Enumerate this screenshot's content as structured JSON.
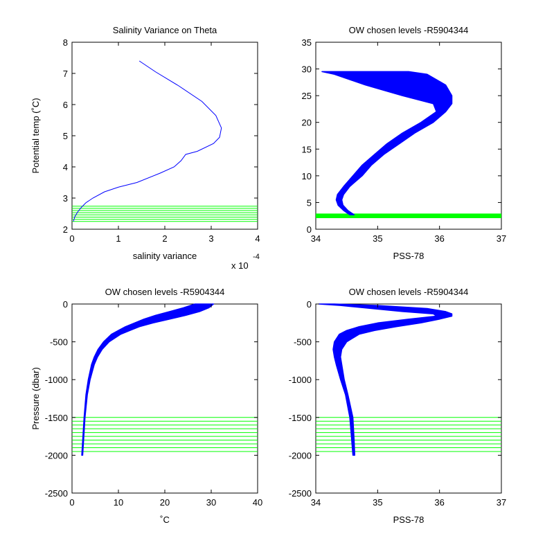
{
  "chart_data": [
    {
      "type": "line",
      "title": "Salinity Variance on Theta",
      "xlabel": "salinity variance",
      "ylabel": "Potential temp (˚C)",
      "x_multiplier": "x 10",
      "x_exponent": "-4",
      "xlim": [
        0,
        4
      ],
      "ylim": [
        2,
        8
      ],
      "xticks": [
        "0",
        "1",
        "2",
        "3",
        "4"
      ],
      "yticks": [
        "2",
        "3",
        "4",
        "5",
        "6",
        "7",
        "8"
      ],
      "colors": {
        "profile": "#0000ff",
        "chosen_levels": "#00ff00"
      },
      "series": [
        {
          "x": [
            1.45,
            1.8,
            2.3,
            2.8,
            3.1,
            3.22,
            3.18,
            3.05,
            2.7,
            2.45,
            2.35,
            2.2,
            1.9,
            1.4,
            1.0,
            0.7,
            0.45,
            0.3,
            0.2,
            0.12,
            0.06,
            0.03
          ],
          "y": [
            7.4,
            7.05,
            6.6,
            6.1,
            5.65,
            5.25,
            4.95,
            4.75,
            4.5,
            4.4,
            4.2,
            4.0,
            3.8,
            3.5,
            3.35,
            3.2,
            3.0,
            2.85,
            2.7,
            2.55,
            2.4,
            2.25
          ]
        }
      ],
      "chosen_levels_y": [
        2.25,
        2.32,
        2.39,
        2.46,
        2.53,
        2.6,
        2.67,
        2.74
      ]
    },
    {
      "type": "line",
      "title": "OW chosen levels -R5904344",
      "xlabel": "PSS-78",
      "ylabel": "",
      "xlim": [
        34,
        37
      ],
      "ylim": [
        0,
        35
      ],
      "xticks": [
        "34",
        "35",
        "36",
        "37"
      ],
      "yticks": [
        "0",
        "5",
        "10",
        "15",
        "20",
        "25",
        "30",
        "35"
      ],
      "colors": {
        "profile": "#0000ff",
        "chosen_levels": "#00ff00"
      },
      "profile_envelope": {
        "y": [
          29.5,
          29.0,
          27.0,
          25.0,
          23.5,
          22.0,
          20.0,
          18.0,
          16.0,
          14.0,
          12.0,
          10.0,
          8.0,
          6.5,
          5.5,
          4.5,
          3.5,
          2.7
        ],
        "x_min": [
          34.1,
          34.3,
          34.8,
          35.4,
          35.9,
          35.95,
          35.7,
          35.4,
          35.15,
          34.95,
          34.75,
          34.6,
          34.45,
          34.35,
          34.33,
          34.36,
          34.45,
          34.55
        ],
        "x_max": [
          35.5,
          35.8,
          36.1,
          36.2,
          36.2,
          36.1,
          35.9,
          35.6,
          35.35,
          35.1,
          34.9,
          34.75,
          34.55,
          34.45,
          34.42,
          34.44,
          34.52,
          34.62
        ]
      },
      "chosen_levels_y": [
        2.2,
        2.35,
        2.5,
        2.65,
        2.8
      ]
    },
    {
      "type": "line",
      "title": "OW chosen levels -R5904344",
      "xlabel": "˚C",
      "ylabel": "Pressure (dbar)",
      "xlim": [
        0,
        40
      ],
      "ylim": [
        -2500,
        0
      ],
      "xticks": [
        "0",
        "10",
        "20",
        "30",
        "40"
      ],
      "yticks": [
        "-2500",
        "-2000",
        "-1500",
        "-1000",
        "-500",
        "0"
      ],
      "colors": {
        "profile": "#0000ff",
        "chosen_levels": "#00ff00"
      },
      "profile_envelope": {
        "y": [
          0,
          -50,
          -100,
          -150,
          -200,
          -250,
          -300,
          -350,
          -400,
          -500,
          -600,
          -700,
          -800,
          -1000,
          -1200,
          -1500,
          -1800,
          -2000
        ],
        "x_min": [
          26.5,
          24.0,
          21.0,
          18.0,
          15.5,
          13.5,
          11.5,
          10.0,
          8.5,
          6.8,
          5.6,
          4.8,
          4.2,
          3.5,
          3.0,
          2.6,
          2.3,
          2.1
        ],
        "x_max": [
          30.5,
          29.5,
          27.5,
          24.5,
          21.0,
          17.5,
          14.5,
          12.5,
          10.5,
          8.0,
          6.5,
          5.5,
          4.8,
          3.9,
          3.3,
          2.8,
          2.5,
          2.3
        ]
      },
      "chosen_levels_y": [
        -1500,
        -1550,
        -1600,
        -1650,
        -1700,
        -1750,
        -1800,
        -1850,
        -1900,
        -1950
      ]
    },
    {
      "type": "line",
      "title": "OW chosen levels -R5904344",
      "xlabel": "PSS-78",
      "ylabel": "",
      "xlim": [
        34,
        37
      ],
      "ylim": [
        -2500,
        0
      ],
      "xticks": [
        "34",
        "35",
        "36",
        "37"
      ],
      "yticks": [
        "-2500",
        "-2000",
        "-1500",
        "-1000",
        "-500",
        "0"
      ],
      "colors": {
        "profile": "#0000ff",
        "chosen_levels": "#00ff00"
      },
      "profile_envelope": {
        "y": [
          0,
          -20,
          -60,
          -100,
          -130,
          -160,
          -200,
          -250,
          -300,
          -350,
          -400,
          -500,
          -600,
          -700,
          -800,
          -1000,
          -1200,
          -1500,
          -1800,
          -2000
        ],
        "x_min": [
          34.05,
          34.4,
          34.9,
          35.4,
          35.9,
          35.95,
          35.5,
          35.0,
          34.7,
          34.5,
          34.38,
          34.3,
          34.28,
          34.3,
          34.33,
          34.4,
          34.48,
          34.55,
          34.58,
          34.6
        ],
        "x_max": [
          34.3,
          35.0,
          35.8,
          36.1,
          36.2,
          36.2,
          36.0,
          35.7,
          35.3,
          34.95,
          34.7,
          34.5,
          34.42,
          34.4,
          34.42,
          34.46,
          34.52,
          34.6,
          34.62,
          34.63
        ]
      },
      "chosen_levels_y": [
        -1500,
        -1550,
        -1600,
        -1650,
        -1700,
        -1750,
        -1800,
        -1850,
        -1900,
        -1950
      ]
    }
  ]
}
